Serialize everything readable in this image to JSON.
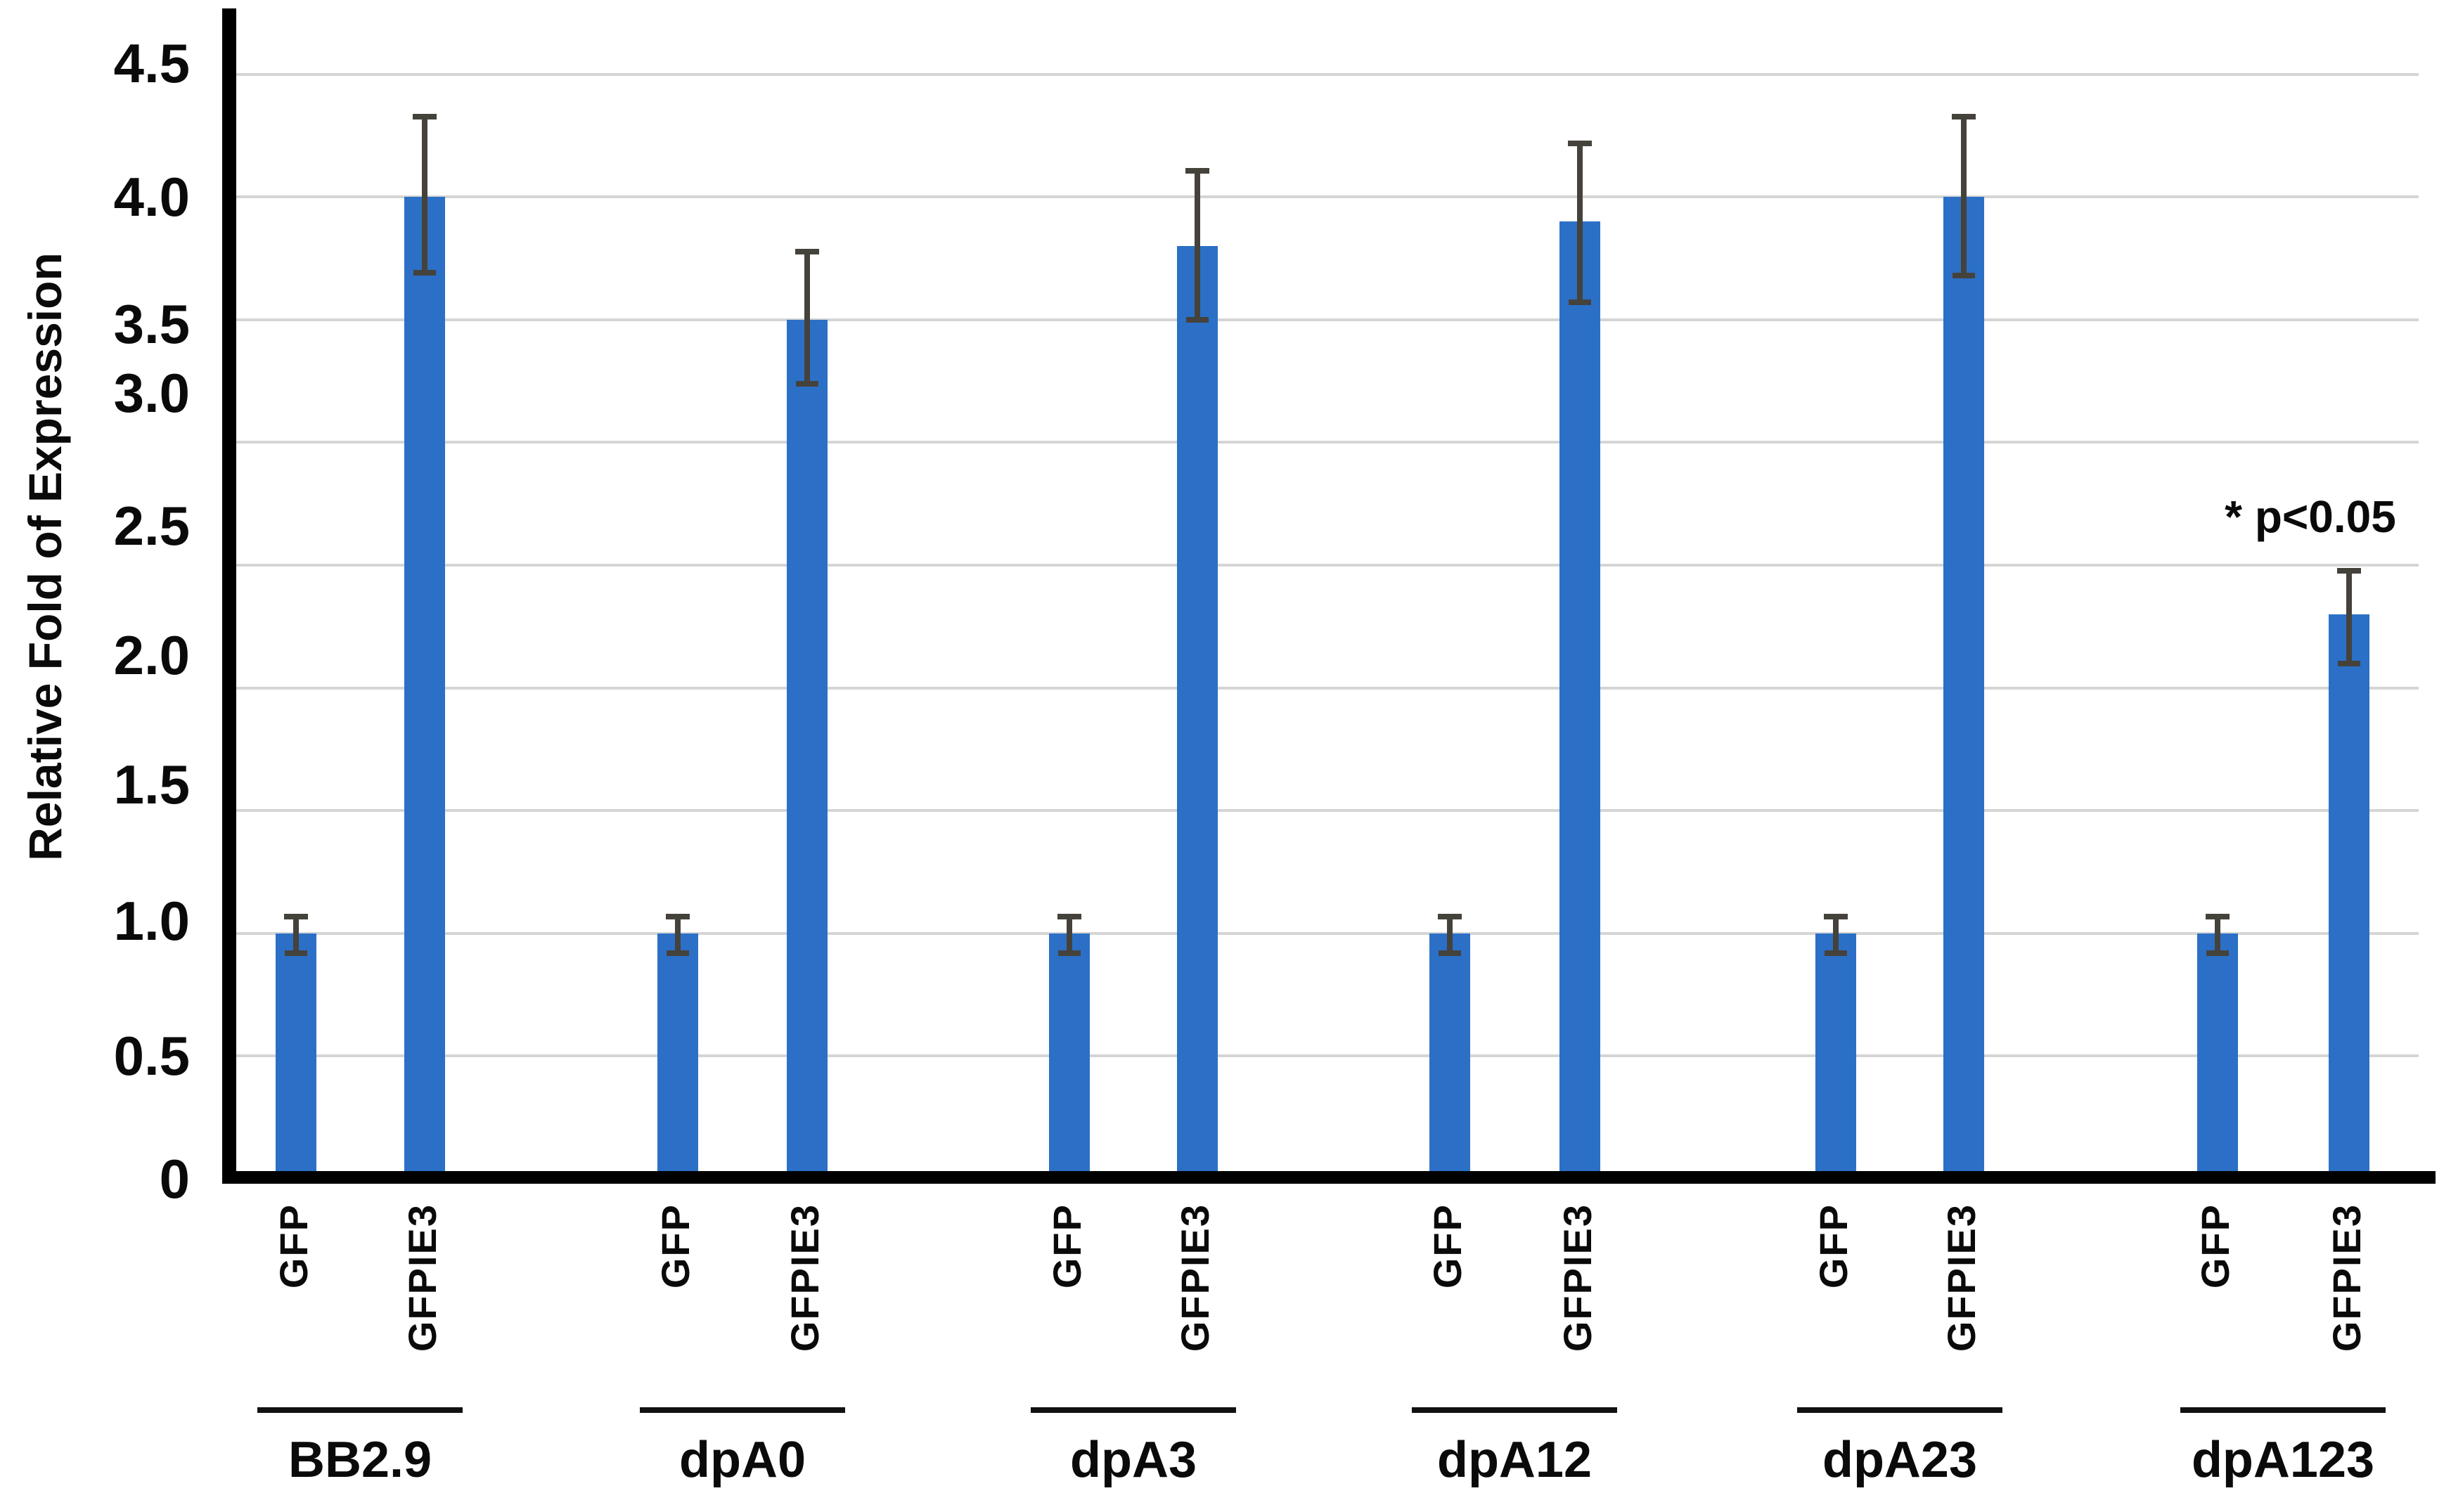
{
  "chart_data": {
    "type": "bar",
    "ylabel": "Relative Fold of Expression",
    "ylim": [
      0,
      4.5
    ],
    "ytick_values": [
      4.5,
      4.0,
      3.5,
      3.0,
      2.5,
      2.0,
      1.5,
      1.0,
      0.5,
      0
    ],
    "ytick_labels": [
      "4.5",
      "4.0",
      "3.5",
      "3.0",
      "2.5",
      "2.0",
      "1.5",
      "1.0",
      "0.5",
      "0"
    ],
    "grid": "horizontal-gridlines-on",
    "legend": "none",
    "annotation": "* p<0.05",
    "bar_color": "#2B70C6",
    "error_bar_color": "#45423C",
    "gridline_color": "#d5d5d5",
    "axis_color": "#000000",
    "categories": [
      "BB2.9",
      "dpA0",
      "dpA3",
      "dpA12",
      "dpA23",
      "dpA123"
    ],
    "condition_labels": [
      "GFP",
      "GFPIE3"
    ],
    "series": [
      {
        "name": "GFP",
        "values": [
          1.0,
          1.0,
          1.0,
          1.0,
          1.0,
          1.0
        ],
        "error_up": [
          0.07,
          0.07,
          0.07,
          0.07,
          0.07,
          0.07
        ],
        "error_down": [
          0.08,
          0.08,
          0.08,
          0.08,
          0.08,
          0.08
        ]
      },
      {
        "name": "GFPIE3",
        "values": [
          4.0,
          3.5,
          3.8,
          3.9,
          4.0,
          2.3
        ],
        "error_up": [
          0.33,
          0.28,
          0.31,
          0.32,
          0.33,
          0.18
        ],
        "error_down": [
          0.31,
          0.26,
          0.3,
          0.33,
          0.32,
          0.2
        ]
      }
    ]
  }
}
